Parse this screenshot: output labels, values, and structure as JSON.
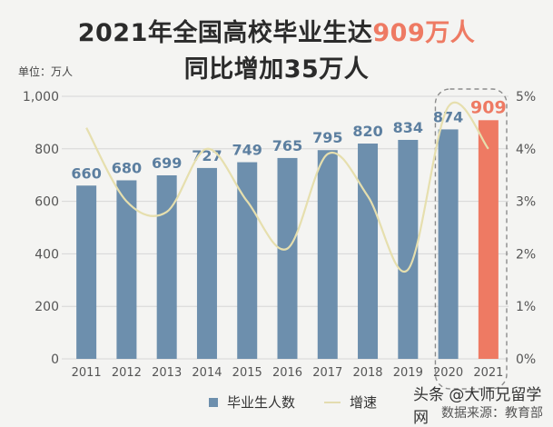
{
  "titles": {
    "line1_prefix": "2021年全国高校毕业生达",
    "line1_highlight": "909万人",
    "line2": "同比增加35万人"
  },
  "unit_label": "单位：万人",
  "legend": {
    "bars": "毕业生人数",
    "line": "增速"
  },
  "watermark": {
    "line1": "头条 @大师兄留学网",
    "line2": "数据来源：教育部"
  },
  "colors": {
    "bar": "#6d8fad",
    "highlight_bar": "#ee7a63",
    "line": "#e6dfae",
    "label": "#5c7fa0",
    "highlight_label": "#ee7a63"
  },
  "chart_data": {
    "type": "bar",
    "categories": [
      "2011",
      "2012",
      "2013",
      "2014",
      "2015",
      "2016",
      "2017",
      "2018",
      "2019",
      "2020",
      "2021"
    ],
    "series": [
      {
        "name": "毕业生人数",
        "values": [
          660,
          680,
          699,
          727,
          749,
          765,
          795,
          820,
          834,
          874,
          909
        ]
      },
      {
        "name": "增速",
        "type": "line",
        "values": [
          4.4,
          3.0,
          2.8,
          4.0,
          3.0,
          2.1,
          3.9,
          3.1,
          1.7,
          4.8,
          4.0
        ]
      }
    ],
    "ylim": [
      0,
      1000
    ],
    "y_ticks": [
      "0",
      "200",
      "400",
      "600",
      "800",
      "1,000"
    ],
    "y2lim": [
      0,
      5
    ],
    "y2_ticks": [
      "0%",
      "1%",
      "2%",
      "3%",
      "4%",
      "5%"
    ],
    "highlight": [
      "2020",
      "2021"
    ]
  }
}
